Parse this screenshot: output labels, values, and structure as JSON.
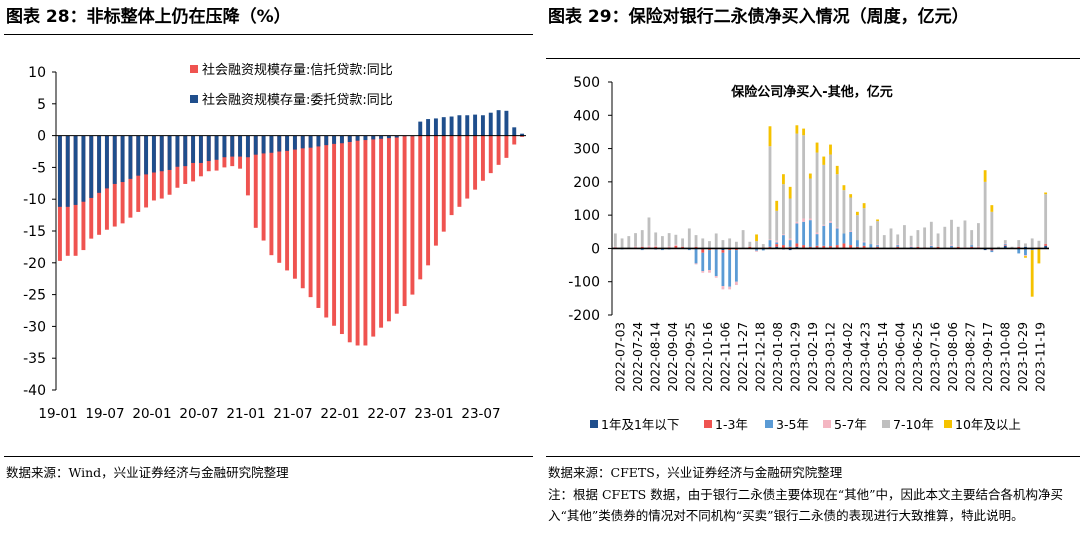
{
  "left": {
    "figure_title": "图表 28：非标整体上仍在压降（%）",
    "source": "数据来源：Wind，兴业证券经济与金融研究院整理"
  },
  "right": {
    "figure_title": "图表 29：保险对银行二永债净买入情况（周度，亿元）",
    "source": "数据来源：CFETS，兴业证券经济与金融研究院整理",
    "note": "注：根据 CFETS 数据，由于银行二永债主要体现在“其他”中，因此本文主要结合各机构净买入“其他”类债券的情况对不同机构“买卖”银行二永债的表现进行大致推算，特此说明。"
  },
  "chart_data": [
    {
      "type": "bar",
      "title": "",
      "x_tick_labels": [
        "19-01",
        "19-07",
        "20-01",
        "20-07",
        "21-01",
        "21-07",
        "22-01",
        "22-07",
        "23-01",
        "23-07"
      ],
      "ylim": [
        -40,
        10
      ],
      "y_ticks": [
        10,
        5,
        0,
        -5,
        -10,
        -15,
        -20,
        -25,
        -30,
        -35,
        -40
      ],
      "grid": false,
      "legend_position": "top-right",
      "series": [
        {
          "name": "社会融资规模存量:信托贷款:同比",
          "color": "#EF5350",
          "values": [
            -19.7,
            -18.9,
            -18.9,
            -18.0,
            -16.2,
            -15.6,
            -14.8,
            -14.3,
            -13.8,
            -12.9,
            -12.0,
            -11.3,
            -10.2,
            -9.9,
            -9.3,
            -8.2,
            -7.6,
            -7.2,
            -6.4,
            -5.6,
            -5.5,
            -5.0,
            -4.8,
            -5.2,
            -9.4,
            -14.5,
            -16.5,
            -18.8,
            -20.0,
            -21.2,
            -22.5,
            -24.0,
            -25.4,
            -27.1,
            -28.6,
            -29.9,
            -31.2,
            -32.5,
            -33.0,
            -33.0,
            -31.6,
            -30.2,
            -29.2,
            -28.0,
            -26.8,
            -25.0,
            -22.6,
            -20.4,
            -17.3,
            -15.1,
            -12.5,
            -11.2,
            -9.9,
            -8.5,
            -7.1,
            -5.9,
            -4.6,
            -3.5,
            -1.4,
            -0.2
          ]
        },
        {
          "name": "社会融资规模存量:委托贷款:同比",
          "color": "#1F4E8C",
          "values": [
            -11.2,
            -11.2,
            -10.9,
            -10.4,
            -9.8,
            -9.0,
            -8.3,
            -7.6,
            -7.3,
            -6.8,
            -6.3,
            -6.1,
            -5.8,
            -5.6,
            -5.4,
            -4.9,
            -4.8,
            -4.3,
            -4.3,
            -4.0,
            -3.8,
            -3.4,
            -3.3,
            -3.3,
            -3.4,
            -3.0,
            -2.8,
            -2.7,
            -2.5,
            -2.4,
            -2.2,
            -2.0,
            -1.9,
            -1.7,
            -1.5,
            -1.3,
            -1.2,
            -1.0,
            -0.8,
            -0.7,
            -0.6,
            -0.5,
            -0.4,
            -0.3,
            -0.1,
            -0.1,
            2.2,
            2.6,
            2.7,
            2.9,
            3.0,
            3.2,
            3.2,
            3.3,
            3.2,
            3.6,
            4.0,
            3.9,
            1.3,
            0.3
          ]
        }
      ]
    },
    {
      "type": "bar",
      "title": "保险公司净买入-其他，亿元",
      "stacked": true,
      "x_tick_labels": [
        "2022-07-03",
        "2022-07-24",
        "2022-08-14",
        "2022-09-04",
        "2022-09-25",
        "2022-10-16",
        "2022-11-06",
        "2022-11-27",
        "2022-12-18",
        "2023-01-08",
        "2023-01-29",
        "2023-02-19",
        "2023-03-12",
        "2023-04-02",
        "2023-04-23",
        "2023-05-14",
        "2023-06-04",
        "2023-06-25",
        "2023-07-16",
        "2023-08-06",
        "2023-08-27",
        "2023-09-17",
        "2023-10-08",
        "2023-10-29",
        "2023-11-19"
      ],
      "ylim": [
        -200,
        500
      ],
      "y_ticks": [
        500,
        400,
        300,
        200,
        100,
        0,
        -100,
        -200
      ],
      "grid": false,
      "legend_position": "bottom",
      "series": [
        {
          "name": "1年及1年以下",
          "color": "#1F4E8C",
          "values": [
            0,
            0,
            0,
            0,
            0,
            0,
            -3,
            0,
            0,
            0,
            0,
            0,
            0,
            -3,
            2,
            0,
            -5,
            0,
            0,
            0,
            0,
            -2,
            -3,
            0,
            5,
            -3,
            -5,
            5,
            2,
            0,
            3,
            0,
            2,
            0,
            0,
            0,
            0,
            0,
            0,
            0,
            0,
            0,
            0,
            0,
            0,
            0,
            0,
            0,
            0,
            0,
            0,
            0,
            0,
            0,
            0,
            -5,
            -3,
            0,
            8,
            0,
            0,
            5,
            0,
            0,
            8
          ]
        },
        {
          "name": "1-3年",
          "color": "#EF5350",
          "values": [
            3,
            0,
            2,
            3,
            5,
            3,
            5,
            2,
            3,
            8,
            5,
            0,
            5,
            -10,
            -5,
            -3,
            -8,
            -5,
            -5,
            0,
            5,
            2,
            3,
            5,
            8,
            10,
            5,
            10,
            8,
            5,
            5,
            8,
            5,
            10,
            15,
            10,
            5,
            8,
            3,
            5,
            0,
            0,
            5,
            0,
            2,
            5,
            3,
            3,
            5,
            0,
            3,
            5,
            2,
            5,
            3,
            0,
            -3,
            0,
            2,
            0,
            5,
            0,
            0,
            3,
            5
          ]
        },
        {
          "name": "3-5年",
          "color": "#5B9BD5",
          "values": [
            0,
            -3,
            0,
            0,
            -5,
            0,
            0,
            -5,
            -3,
            0,
            0,
            -5,
            -45,
            -55,
            -60,
            -80,
            -100,
            -110,
            -95,
            0,
            0,
            -5,
            -3,
            20,
            5,
            30,
            20,
            60,
            70,
            80,
            35,
            60,
            70,
            50,
            30,
            40,
            20,
            10,
            10,
            5,
            0,
            0,
            5,
            0,
            3,
            0,
            0,
            5,
            0,
            0,
            5,
            0,
            0,
            5,
            0,
            0,
            -5,
            0,
            3,
            0,
            -15,
            -20,
            -5,
            0,
            0
          ]
        },
        {
          "name": "5-7年",
          "color": "#F4B6C2",
          "values": [
            2,
            0,
            0,
            3,
            0,
            5,
            3,
            0,
            3,
            3,
            0,
            0,
            -3,
            -5,
            -8,
            -5,
            -10,
            -8,
            -10,
            0,
            0,
            -3,
            0,
            2,
            5,
            3,
            5,
            5,
            10,
            5,
            5,
            3,
            5,
            3,
            0,
            3,
            0,
            3,
            0,
            2,
            0,
            0,
            2,
            0,
            3,
            0,
            0,
            2,
            0,
            0,
            3,
            0,
            2,
            0,
            3,
            0,
            0,
            0,
            2,
            0,
            0,
            -3,
            0,
            0,
            0
          ]
        },
        {
          "name": "7-10年",
          "color": "#BFBFBF",
          "values": [
            40,
            30,
            35,
            40,
            50,
            85,
            40,
            35,
            40,
            30,
            25,
            60,
            35,
            30,
            20,
            45,
            25,
            30,
            20,
            55,
            15,
            20,
            10,
            280,
            90,
            150,
            120,
            265,
            250,
            120,
            240,
            180,
            200,
            160,
            130,
            100,
            75,
            100,
            55,
            70,
            40,
            60,
            30,
            70,
            30,
            50,
            60,
            70,
            40,
            65,
            75,
            60,
            80,
            45,
            70,
            200,
            110,
            5,
            10,
            5,
            20,
            10,
            30,
            20,
            150
          ]
        },
        {
          "name": "10年及以上",
          "color": "#F5C200",
          "values": [
            0,
            0,
            0,
            0,
            0,
            0,
            0,
            0,
            0,
            0,
            0,
            0,
            0,
            0,
            0,
            0,
            0,
            0,
            0,
            0,
            0,
            20,
            0,
            60,
            30,
            30,
            35,
            25,
            20,
            15,
            30,
            25,
            30,
            25,
            15,
            10,
            10,
            15,
            0,
            5,
            0,
            0,
            0,
            0,
            0,
            0,
            0,
            0,
            0,
            0,
            0,
            0,
            0,
            0,
            0,
            35,
            20,
            0,
            0,
            0,
            0,
            -5,
            -140,
            -45,
            5
          ]
        }
      ]
    }
  ]
}
